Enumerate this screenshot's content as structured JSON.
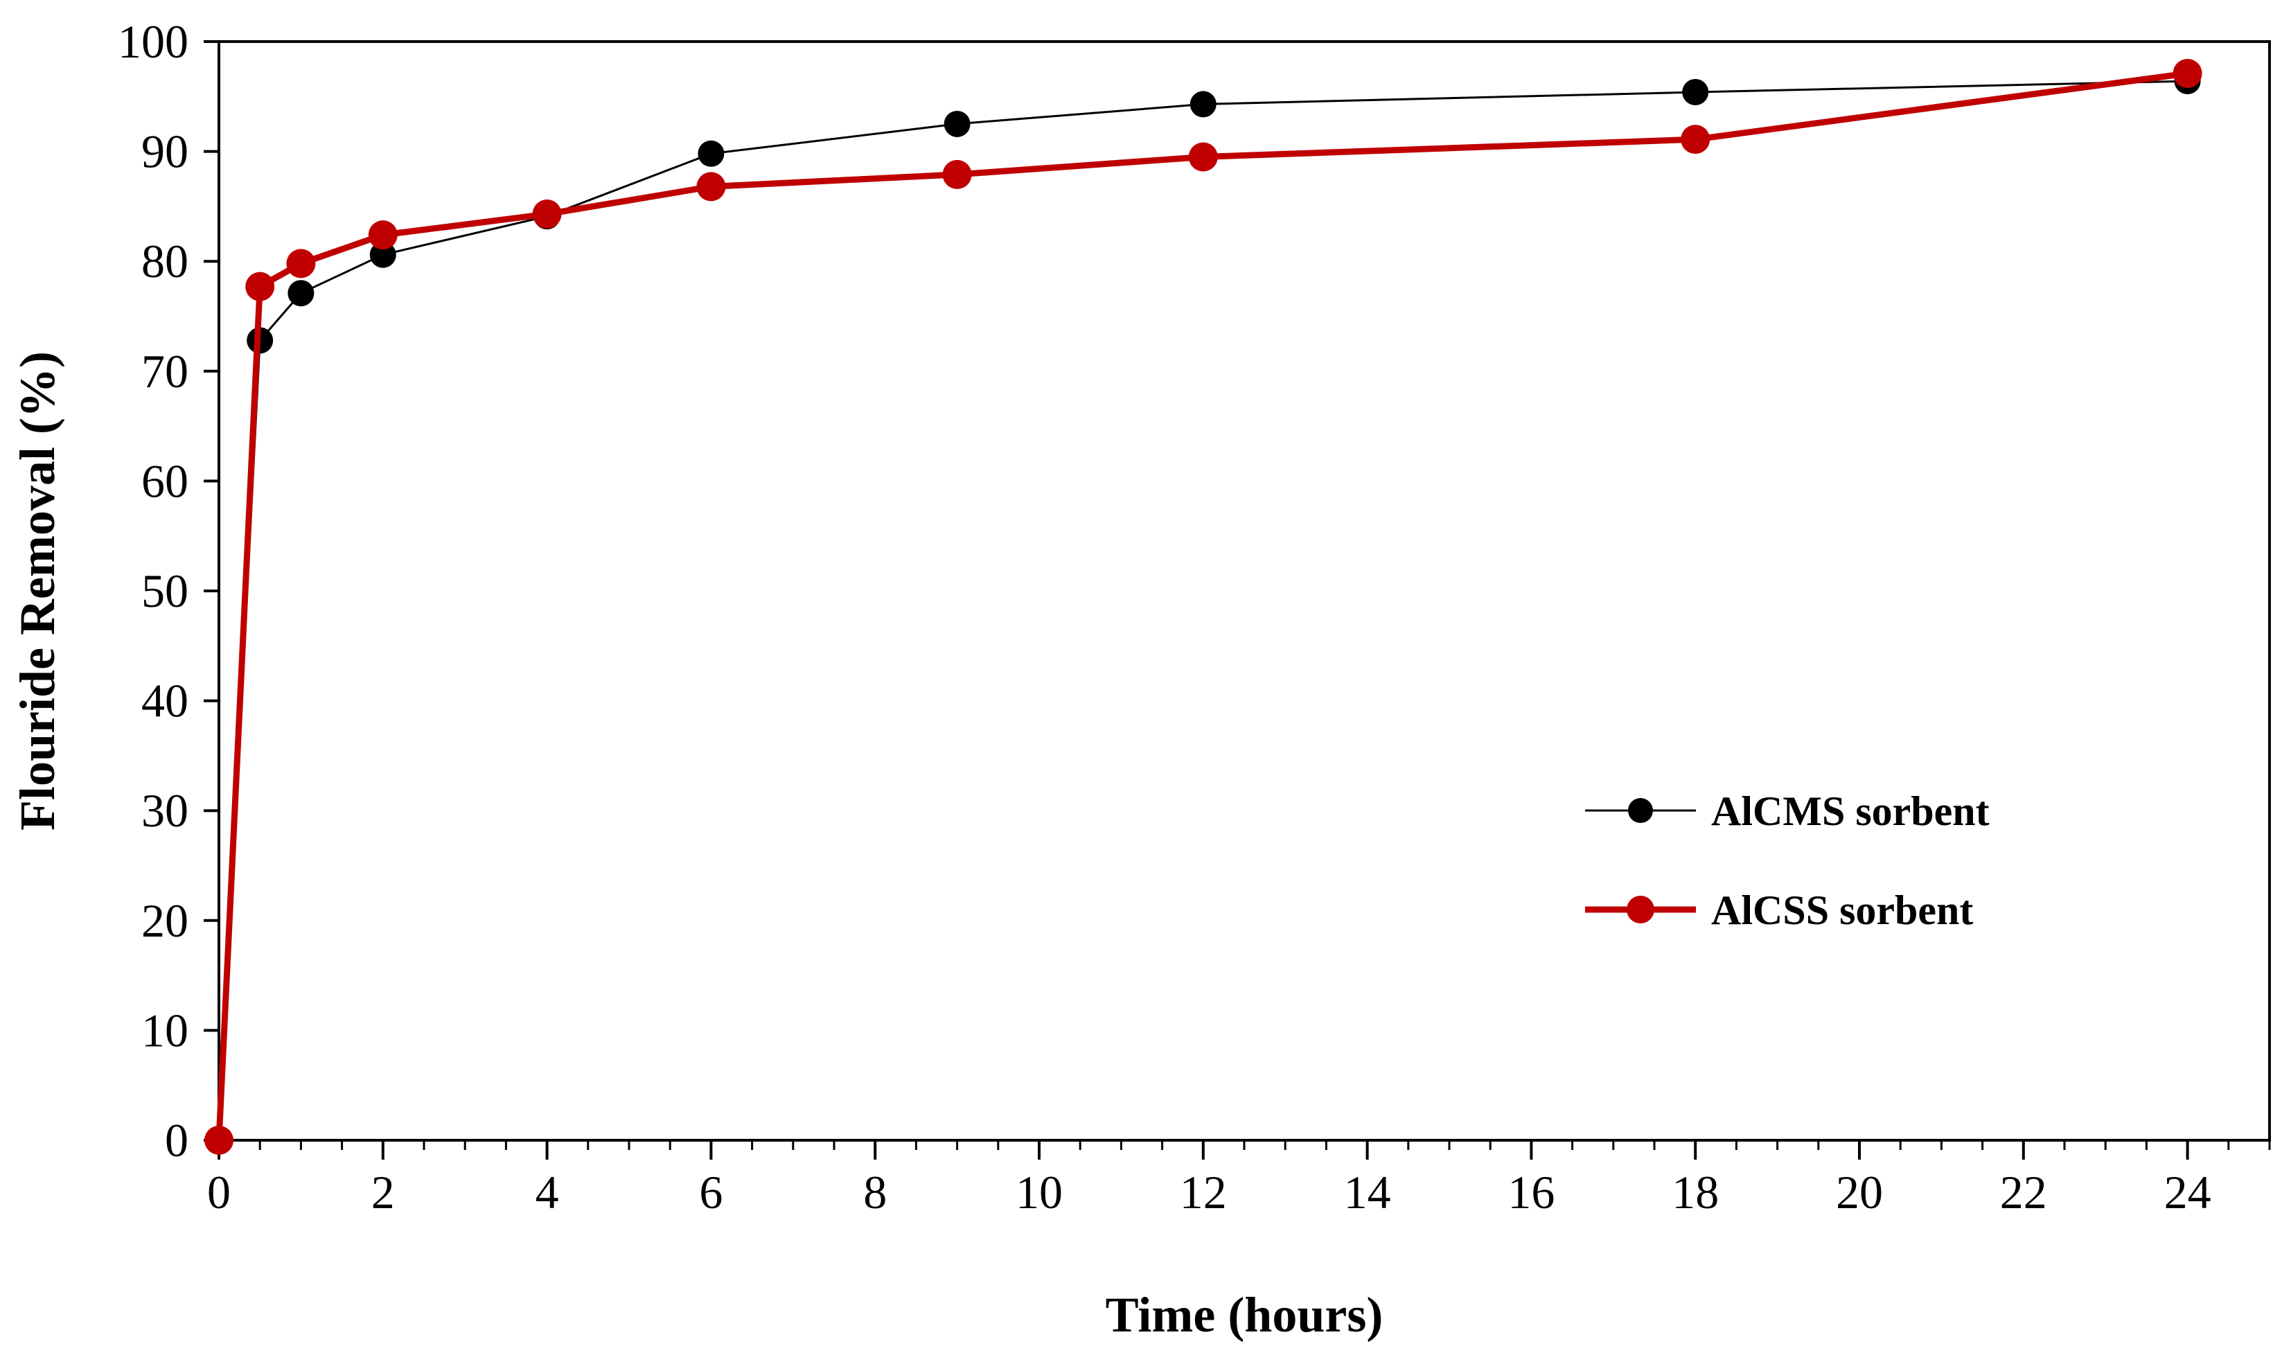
{
  "chart_data": {
    "type": "line",
    "title": "",
    "xlabel": "Time (hours)",
    "ylabel": "Flouride Removal (%)",
    "xlim": [
      0,
      25
    ],
    "ylim": [
      0,
      100
    ],
    "xticks": [
      0,
      2,
      4,
      6,
      8,
      10,
      12,
      14,
      16,
      18,
      20,
      22,
      24
    ],
    "yticks": [
      0,
      10,
      20,
      30,
      40,
      50,
      60,
      70,
      80,
      90,
      100
    ],
    "x_minor_step": 0.5,
    "grid": false,
    "legend_position": "right",
    "series": [
      {
        "name": "AlCMS sorbent",
        "color": "#000000",
        "x": [
          0,
          0.5,
          1,
          2,
          4,
          6,
          9,
          12,
          18,
          24
        ],
        "values": [
          0,
          72.8,
          77.1,
          80.6,
          84.1,
          89.8,
          92.5,
          94.3,
          95.4,
          96.4
        ]
      },
      {
        "name": "AlCSS sorbent",
        "color": "#C00000",
        "x": [
          0,
          0.5,
          1,
          2,
          4,
          6,
          9,
          12,
          18,
          24
        ],
        "values": [
          0,
          77.7,
          79.8,
          82.4,
          84.3,
          86.8,
          87.9,
          89.5,
          91.1,
          97.1
        ]
      }
    ]
  }
}
